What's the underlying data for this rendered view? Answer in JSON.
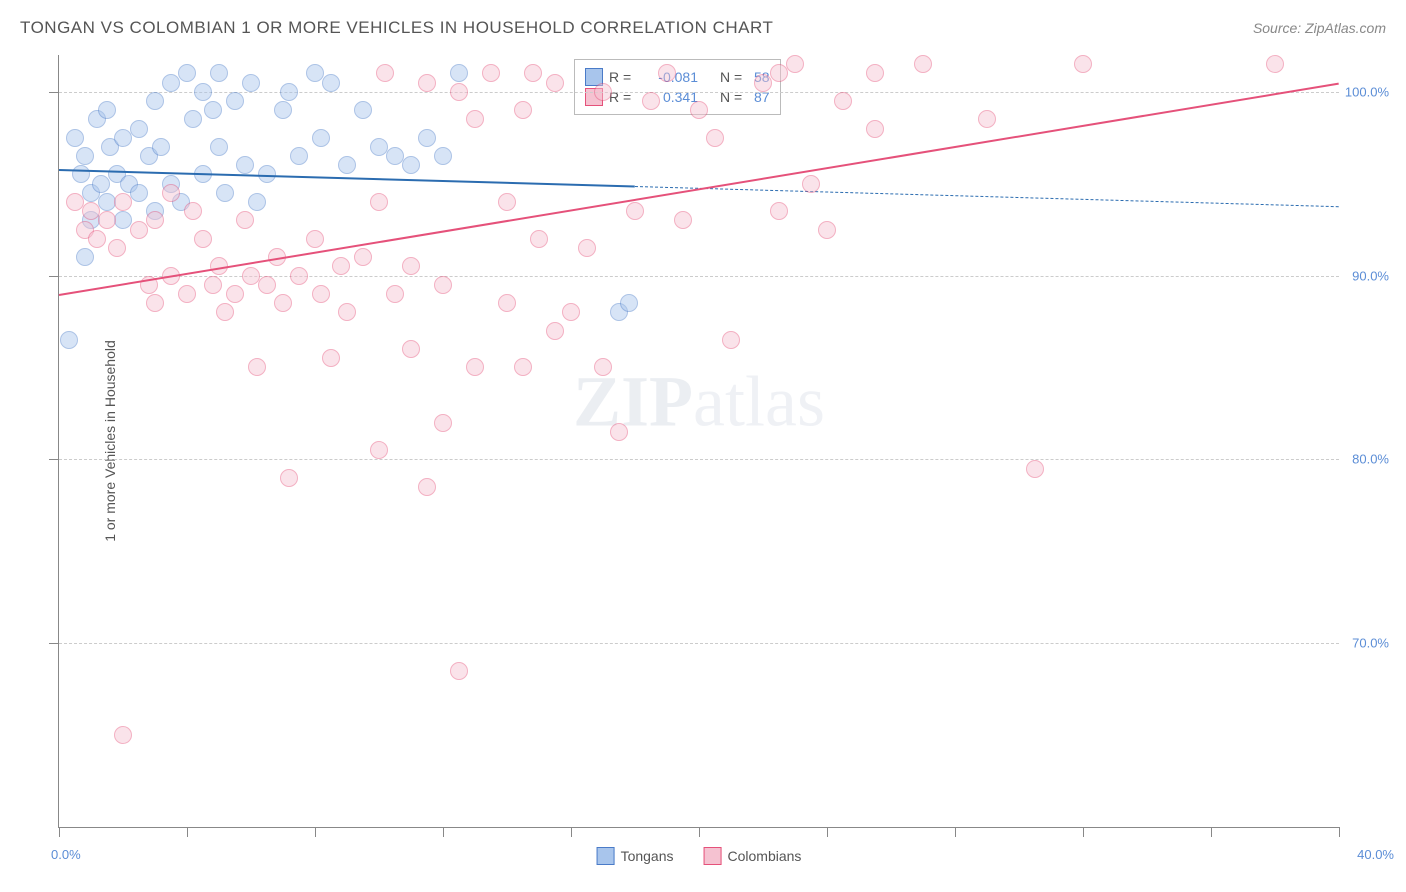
{
  "title": "TONGAN VS COLOMBIAN 1 OR MORE VEHICLES IN HOUSEHOLD CORRELATION CHART",
  "source": "Source: ZipAtlas.com",
  "watermark_zip": "ZIP",
  "watermark_atlas": "atlas",
  "chart": {
    "type": "scatter",
    "background_color": "#ffffff",
    "grid_color": "#cccccc",
    "axis_color": "#888888",
    "font_family": "Arial",
    "title_fontsize": 17,
    "label_fontsize": 14,
    "tick_fontsize": 13,
    "tick_color": "#5b8dd6",
    "y_axis_title": "1 or more Vehicles in Household",
    "x_min": 0,
    "x_max": 40,
    "y_min": 60,
    "y_max": 102,
    "x_tick_positions": [
      0,
      4,
      8,
      12,
      16,
      20,
      24,
      28,
      32,
      36,
      40
    ],
    "x_labels": {
      "min": "0.0%",
      "max": "40.0%"
    },
    "y_gridlines": [
      70,
      80,
      90,
      100
    ],
    "y_labels": [
      "70.0%",
      "80.0%",
      "90.0%",
      "100.0%"
    ],
    "marker_radius": 8,
    "marker_opacity": 0.45,
    "series": [
      {
        "name": "Tongans",
        "color_fill": "#a8c5ec",
        "color_stroke": "#4a7bc8",
        "line_color": "#2b6cb0",
        "r_value": "-0.081",
        "n_value": "58",
        "regression": {
          "x1": 0,
          "y1": 95.8,
          "x2_solid": 18,
          "y2_solid": 94.9,
          "x2_dash": 40,
          "y2_dash": 93.8
        },
        "points": [
          [
            0.3,
            86.5
          ],
          [
            0.5,
            97.5
          ],
          [
            0.7,
            95.5
          ],
          [
            0.8,
            91.0
          ],
          [
            0.8,
            96.5
          ],
          [
            1.0,
            94.5
          ],
          [
            1.0,
            93.0
          ],
          [
            1.2,
            98.5
          ],
          [
            1.3,
            95.0
          ],
          [
            1.5,
            99.0
          ],
          [
            1.5,
            94.0
          ],
          [
            1.6,
            97.0
          ],
          [
            1.8,
            95.5
          ],
          [
            2.0,
            93.0
          ],
          [
            2.0,
            97.5
          ],
          [
            2.2,
            95.0
          ],
          [
            2.5,
            98.0
          ],
          [
            2.5,
            94.5
          ],
          [
            2.8,
            96.5
          ],
          [
            3.0,
            99.5
          ],
          [
            3.0,
            93.5
          ],
          [
            3.2,
            97.0
          ],
          [
            3.5,
            100.5
          ],
          [
            3.5,
            95.0
          ],
          [
            3.8,
            94.0
          ],
          [
            4.0,
            101.0
          ],
          [
            4.2,
            98.5
          ],
          [
            4.5,
            100.0
          ],
          [
            4.5,
            95.5
          ],
          [
            4.8,
            99.0
          ],
          [
            5.0,
            101.0
          ],
          [
            5.0,
            97.0
          ],
          [
            5.2,
            94.5
          ],
          [
            5.5,
            99.5
          ],
          [
            5.8,
            96.0
          ],
          [
            6.0,
            100.5
          ],
          [
            6.2,
            94.0
          ],
          [
            6.5,
            95.5
          ],
          [
            7.0,
            99.0
          ],
          [
            7.2,
            100.0
          ],
          [
            7.5,
            96.5
          ],
          [
            8.0,
            101.0
          ],
          [
            8.2,
            97.5
          ],
          [
            8.5,
            100.5
          ],
          [
            9.0,
            96.0
          ],
          [
            9.5,
            99.0
          ],
          [
            10.0,
            97.0
          ],
          [
            10.5,
            96.5
          ],
          [
            11.0,
            96.0
          ],
          [
            11.5,
            97.5
          ],
          [
            12.0,
            96.5
          ],
          [
            12.5,
            101.0
          ],
          [
            17.5,
            88.0
          ],
          [
            17.8,
            88.5
          ]
        ]
      },
      {
        "name": "Colombians",
        "color_fill": "#f5c2d1",
        "color_stroke": "#e5517a",
        "line_color": "#e5517a",
        "r_value": "0.341",
        "n_value": "87",
        "regression": {
          "x1": 0,
          "y1": 89.0,
          "x2_solid": 40,
          "y2_solid": 100.5,
          "x2_dash": 40,
          "y2_dash": 100.5
        },
        "points": [
          [
            0.5,
            94.0
          ],
          [
            0.8,
            92.5
          ],
          [
            1.0,
            93.5
          ],
          [
            1.2,
            92.0
          ],
          [
            1.5,
            93.0
          ],
          [
            1.8,
            91.5
          ],
          [
            2.0,
            94.0
          ],
          [
            2.0,
            65.0
          ],
          [
            2.5,
            92.5
          ],
          [
            2.8,
            89.5
          ],
          [
            3.0,
            93.0
          ],
          [
            3.0,
            88.5
          ],
          [
            3.5,
            94.5
          ],
          [
            3.5,
            90.0
          ],
          [
            4.0,
            89.0
          ],
          [
            4.2,
            93.5
          ],
          [
            4.5,
            92.0
          ],
          [
            4.8,
            89.5
          ],
          [
            5.0,
            90.5
          ],
          [
            5.2,
            88.0
          ],
          [
            5.5,
            89.0
          ],
          [
            5.8,
            93.0
          ],
          [
            6.0,
            90.0
          ],
          [
            6.2,
            85.0
          ],
          [
            6.5,
            89.5
          ],
          [
            6.8,
            91.0
          ],
          [
            7.0,
            88.5
          ],
          [
            7.2,
            79.0
          ],
          [
            7.5,
            90.0
          ],
          [
            8.0,
            92.0
          ],
          [
            8.2,
            89.0
          ],
          [
            8.5,
            85.5
          ],
          [
            8.8,
            90.5
          ],
          [
            9.0,
            88.0
          ],
          [
            9.5,
            91.0
          ],
          [
            10.0,
            80.5
          ],
          [
            10.0,
            94.0
          ],
          [
            10.2,
            101.0
          ],
          [
            10.5,
            89.0
          ],
          [
            11.0,
            90.5
          ],
          [
            11.0,
            86.0
          ],
          [
            11.5,
            100.5
          ],
          [
            11.5,
            78.5
          ],
          [
            12.0,
            89.5
          ],
          [
            12.0,
            82.0
          ],
          [
            12.5,
            68.5
          ],
          [
            12.5,
            100.0
          ],
          [
            13.0,
            85.0
          ],
          [
            13.0,
            98.5
          ],
          [
            13.5,
            101.0
          ],
          [
            14.0,
            94.0
          ],
          [
            14.0,
            88.5
          ],
          [
            14.5,
            99.0
          ],
          [
            14.5,
            85.0
          ],
          [
            14.8,
            101.0
          ],
          [
            15.0,
            92.0
          ],
          [
            15.5,
            100.5
          ],
          [
            15.5,
            87.0
          ],
          [
            16.0,
            88.0
          ],
          [
            16.5,
            91.5
          ],
          [
            17.0,
            85.0
          ],
          [
            17.0,
            100.0
          ],
          [
            17.5,
            81.5
          ],
          [
            18.0,
            93.5
          ],
          [
            18.5,
            99.5
          ],
          [
            19.0,
            101.0
          ],
          [
            19.5,
            93.0
          ],
          [
            20.0,
            99.0
          ],
          [
            20.5,
            97.5
          ],
          [
            21.0,
            86.5
          ],
          [
            22.0,
            100.5
          ],
          [
            22.5,
            101.0
          ],
          [
            22.5,
            93.5
          ],
          [
            23.0,
            101.5
          ],
          [
            23.5,
            95.0
          ],
          [
            24.0,
            92.5
          ],
          [
            24.5,
            99.5
          ],
          [
            25.5,
            101.0
          ],
          [
            25.5,
            98.0
          ],
          [
            27.0,
            101.5
          ],
          [
            29.0,
            98.5
          ],
          [
            30.5,
            79.5
          ],
          [
            32.0,
            101.5
          ],
          [
            38.0,
            101.5
          ]
        ]
      }
    ],
    "legend_top": {
      "r_label": "R =",
      "n_label": "N =",
      "val_color": "#5b8dd6"
    },
    "legend_bottom": {
      "items": [
        "Tongans",
        "Colombians"
      ]
    }
  }
}
